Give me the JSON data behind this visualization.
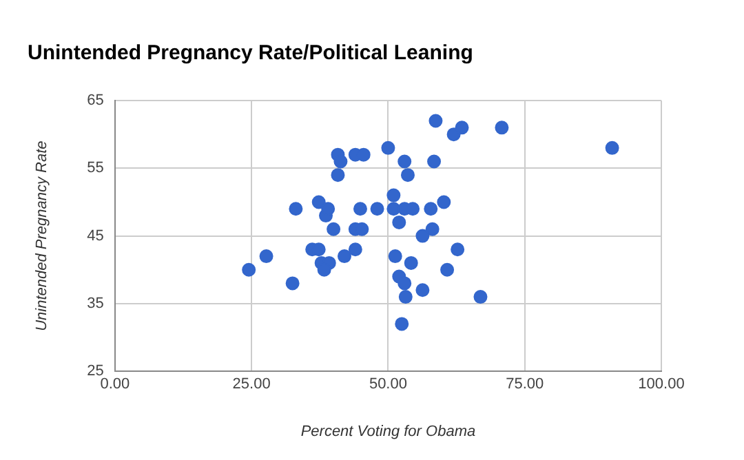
{
  "chart_data": {
    "type": "scatter",
    "title": "Unintended Pregnancy Rate/Political Leaning",
    "xlabel": "Percent Voting for Obama",
    "ylabel": "Unintended Pregnancy Rate",
    "color": "#3366cc",
    "marker": "circle",
    "grid": true,
    "legend": false,
    "xlim": [
      0,
      100
    ],
    "xticks": [
      {
        "value": 0,
        "label": "0.00"
      },
      {
        "value": 25,
        "label": "25.00"
      },
      {
        "value": 50,
        "label": "50.00"
      },
      {
        "value": 75,
        "label": "75.00"
      },
      {
        "value": 100,
        "label": "100.00"
      }
    ],
    "ylim": [
      25,
      65
    ],
    "yticks": [
      25,
      35,
      45,
      55,
      65
    ],
    "x": [
      24.5,
      27.7,
      32.5,
      33.1,
      36.1,
      37.3,
      37.3,
      38.6,
      37.8,
      39.2,
      38.3,
      39,
      40,
      40.8,
      41.3,
      40.8,
      42,
      44,
      44,
      45.2,
      44.9,
      44,
      45.5,
      48,
      50,
      51,
      51,
      51.3,
      52,
      52,
      53,
      53,
      53.6,
      53,
      53.2,
      52.5,
      54.2,
      54.5,
      58.7,
      62,
      63.5,
      70.8,
      91,
      58.4,
      57.8,
      60.2,
      58.1,
      56.3,
      62.7,
      60.8,
      56.3,
      66.9
    ],
    "values": [
      40,
      42,
      38,
      49,
      43,
      50,
      43,
      48,
      41,
      41,
      40,
      49,
      46,
      57,
      56,
      54,
      42,
      43,
      46,
      46,
      49,
      57,
      57,
      49,
      58,
      49,
      51,
      42,
      47,
      39,
      38,
      56,
      54,
      49,
      36,
      32,
      41,
      49,
      62,
      60,
      61,
      61,
      58,
      56,
      49,
      50,
      46,
      45,
      43,
      40,
      37,
      36
    ]
  }
}
